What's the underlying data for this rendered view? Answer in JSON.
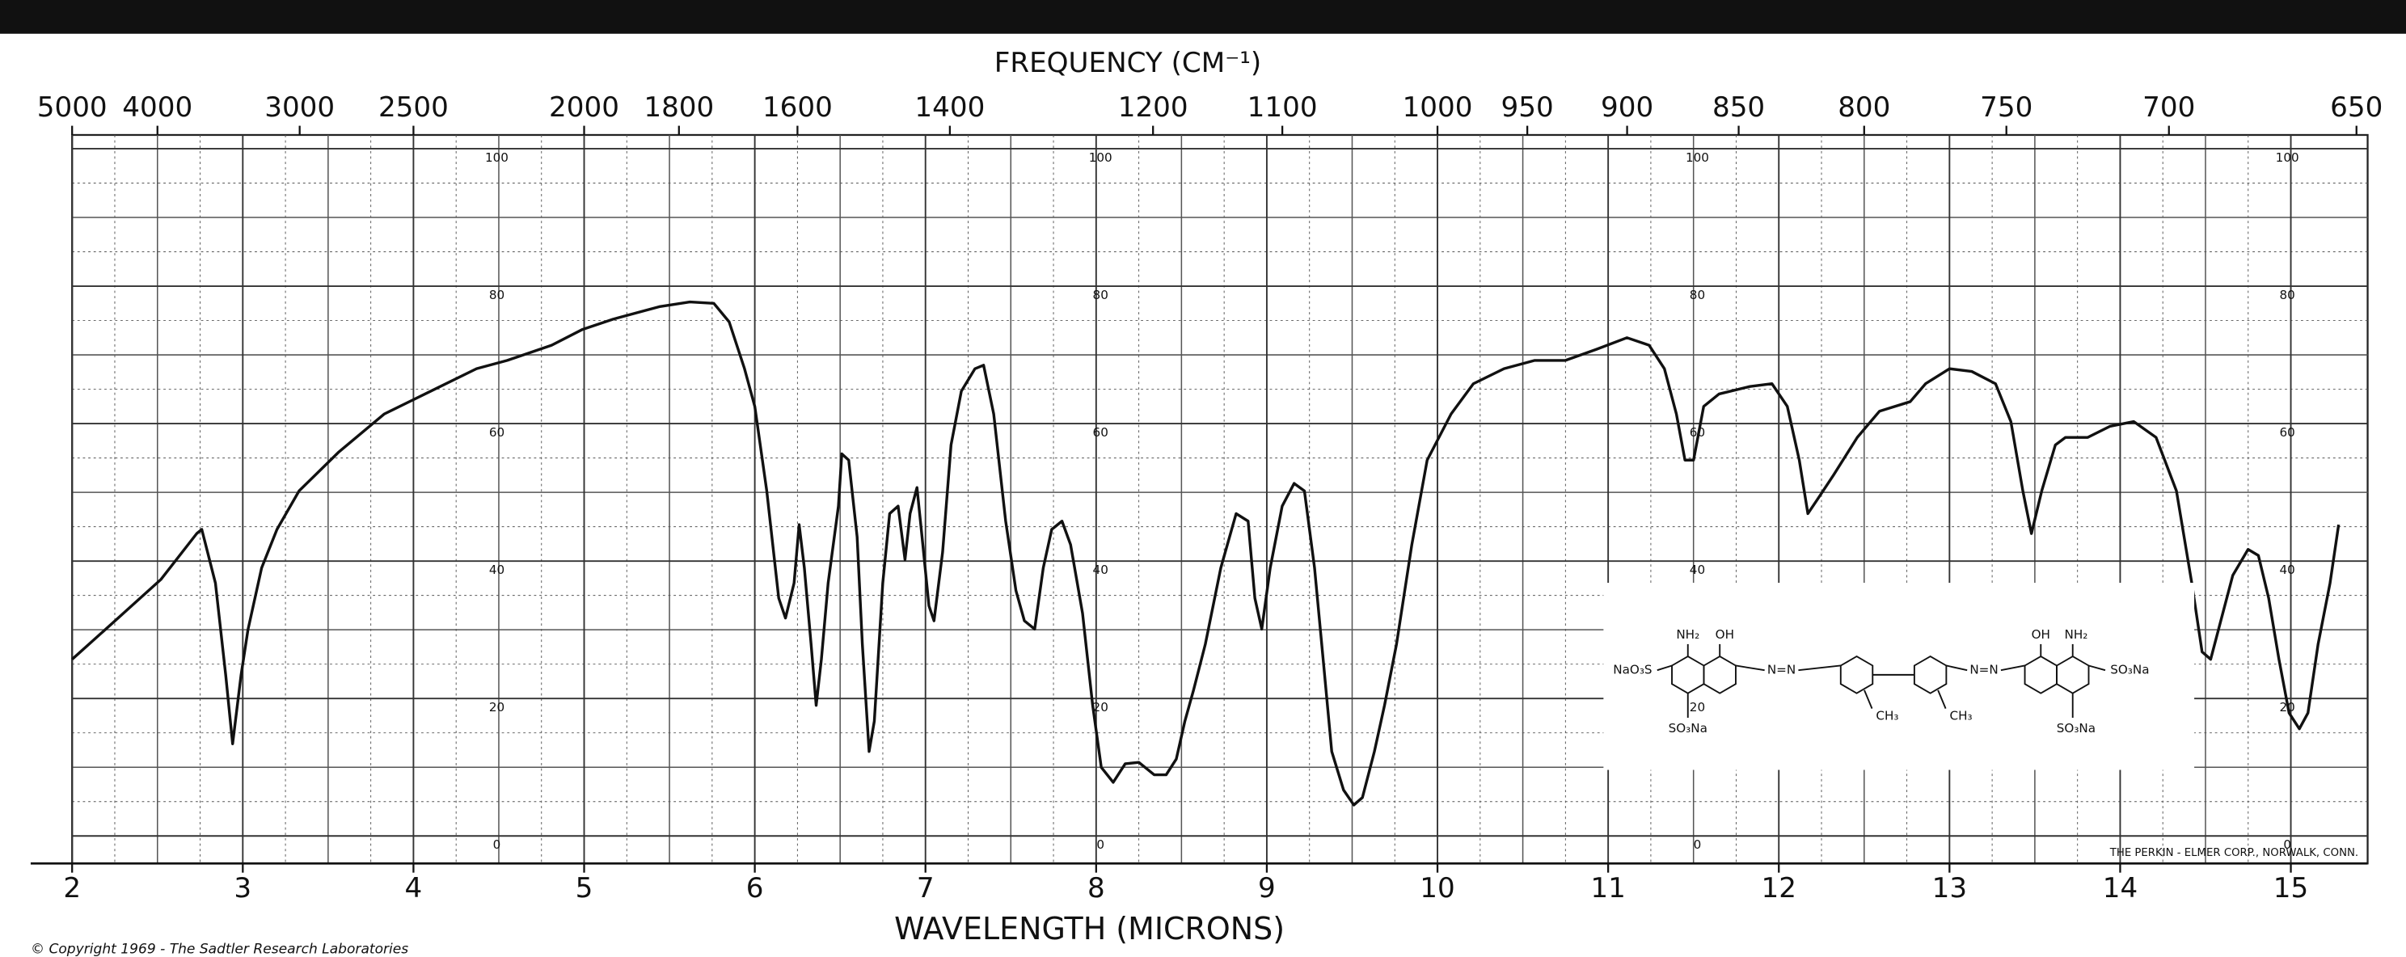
{
  "chart_data": {
    "type": "line",
    "title": "FREQUENCY (CM⁻¹)",
    "x_label": "WAVELENGTH (MICRONS)",
    "credit": "THE PERKIN - ELMER CORP., NORWALK, CONN.",
    "copyright": "© Copyright 1969 - The Sadtler Research Laboratories",
    "color": "#111111",
    "grid": true,
    "xlim": [
      2,
      15.45
    ],
    "ylim": [
      -4,
      102
    ],
    "xticks": [
      2,
      3,
      4,
      5,
      6,
      7,
      8,
      9,
      10,
      11,
      12,
      13,
      14,
      15
    ],
    "yticks": [
      0,
      20,
      40,
      60,
      80,
      100
    ],
    "x2ticks": [
      5000,
      4000,
      3000,
      2500,
      2000,
      1800,
      1600,
      1400,
      1200,
      1100,
      1000,
      950,
      900,
      850,
      800,
      750,
      700,
      650
    ],
    "x": [
      2.0,
      2.3,
      2.52,
      2.73,
      2.76,
      2.84,
      2.9,
      2.94,
      2.99,
      3.03,
      3.11,
      3.2,
      3.33,
      3.56,
      3.83,
      4.1,
      4.37,
      4.55,
      4.81,
      4.99,
      5.17,
      5.44,
      5.62,
      5.76,
      5.85,
      5.94,
      6.0,
      6.07,
      6.14,
      6.18,
      6.23,
      6.26,
      6.29,
      6.33,
      6.36,
      6.39,
      6.43,
      6.49,
      6.51,
      6.55,
      6.6,
      6.63,
      6.67,
      6.7,
      6.75,
      6.79,
      6.84,
      6.88,
      6.91,
      6.95,
      6.98,
      7.02,
      7.05,
      7.1,
      7.15,
      7.21,
      7.29,
      7.34,
      7.4,
      7.47,
      7.53,
      7.58,
      7.64,
      7.69,
      7.74,
      7.8,
      7.85,
      7.92,
      7.98,
      8.03,
      8.1,
      8.17,
      8.25,
      8.34,
      8.41,
      8.47,
      8.52,
      8.57,
      8.64,
      8.73,
      8.82,
      8.89,
      8.93,
      8.97,
      9.02,
      9.09,
      9.16,
      9.22,
      9.28,
      9.33,
      9.38,
      9.45,
      9.51,
      9.56,
      9.63,
      9.69,
      9.76,
      9.85,
      9.94,
      10.08,
      10.21,
      10.39,
      10.57,
      10.75,
      10.93,
      11.11,
      11.24,
      11.33,
      11.4,
      11.45,
      11.5,
      11.56,
      11.65,
      11.83,
      11.96,
      12.05,
      12.12,
      12.17,
      12.23,
      12.32,
      12.46,
      12.59,
      12.77,
      12.86,
      13.0,
      13.13,
      13.27,
      13.36,
      13.43,
      13.48,
      13.54,
      13.62,
      13.68,
      13.81,
      13.94,
      14.08,
      14.21,
      14.33,
      14.42,
      14.48,
      14.53,
      14.59,
      14.66,
      14.75,
      14.81,
      14.87,
      14.93,
      14.99,
      15.05,
      15.1,
      15.16,
      15.23,
      15.28
    ],
    "values": [
      25.7,
      32.4,
      37.3,
      44,
      44.6,
      36.8,
      23.4,
      13.4,
      23.4,
      30,
      39,
      44.6,
      50.2,
      55.8,
      61.4,
      64.7,
      68,
      69.2,
      71.4,
      73.7,
      75.2,
      77,
      77.7,
      77.5,
      74.8,
      68,
      62.5,
      50.2,
      34.6,
      31.7,
      36.8,
      45.3,
      39,
      27.9,
      19,
      25.7,
      36.8,
      48,
      55.6,
      54.7,
      43.5,
      27.9,
      12.3,
      16.7,
      36.8,
      46.9,
      48,
      40.2,
      46.9,
      50.7,
      43.5,
      33.5,
      31.3,
      41.3,
      56.9,
      64.7,
      68,
      68.5,
      61.4,
      45.8,
      35.7,
      31.3,
      30.1,
      39,
      44.6,
      45.8,
      42.4,
      32.4,
      19,
      10,
      7.8,
      10.5,
      10.7,
      8.9,
      8.9,
      11.2,
      16.7,
      21.2,
      27.9,
      39,
      46.9,
      45.8,
      34.6,
      30.1,
      39,
      48,
      51.3,
      50.2,
      39,
      25.7,
      12.3,
      6.7,
      4.5,
      5.6,
      12.3,
      19,
      27.9,
      42.4,
      54.7,
      61.4,
      65.8,
      68,
      69.2,
      69.2,
      70.8,
      72.5,
      71.4,
      68,
      61.4,
      54.7,
      54.7,
      62.5,
      64.3,
      65.4,
      65.8,
      62.5,
      54.7,
      46.9,
      49.1,
      52.5,
      58,
      61.8,
      63.2,
      65.8,
      68,
      67.6,
      65.8,
      60.3,
      50.2,
      44,
      50.2,
      56.9,
      58,
      58,
      59.6,
      60.3,
      58,
      50.2,
      36.8,
      26.8,
      25.7,
      31.3,
      37.9,
      41.7,
      40.8,
      34.6,
      25.7,
      17.9,
      15.6,
      17.9,
      27.9,
      36.8,
      45.3
    ]
  },
  "structure": {
    "labels": [
      "NaO₃S",
      "NH₂",
      "OH",
      "N=N",
      "CH₃",
      "CH₃",
      "N=N",
      "OH",
      "NH₂",
      "SO₃Na",
      "SO₃Na",
      "SO₃Na"
    ]
  }
}
